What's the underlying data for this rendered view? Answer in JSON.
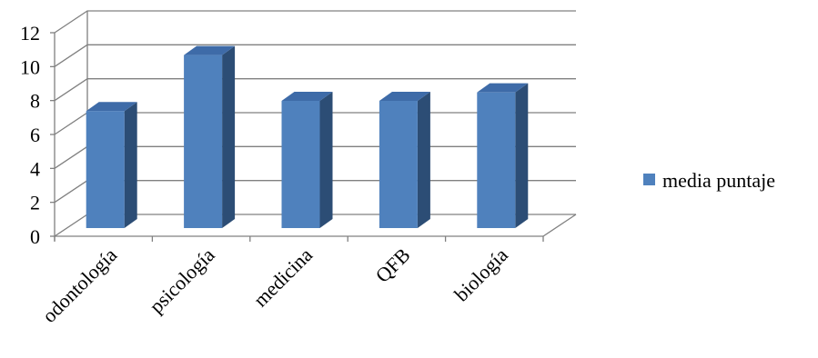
{
  "chart_data": {
    "type": "bar",
    "categories": [
      "odontología",
      "psicología",
      "medicina",
      "QFB",
      "biología"
    ],
    "series": [
      {
        "name": "media puntaje",
        "values": [
          6.9,
          10.2,
          7.5,
          7.5,
          8.0
        ],
        "color": "#4f81bd"
      }
    ],
    "ylim": [
      0,
      12
    ],
    "yticks": [
      0,
      2,
      4,
      6,
      8,
      10,
      12
    ],
    "grid": true,
    "legend": "right",
    "style": "3d-clustered-column",
    "colors": {
      "front": "#4f81bd",
      "side": "#2c4d75",
      "top": "#3e6ba8",
      "grid": "#808080"
    }
  }
}
